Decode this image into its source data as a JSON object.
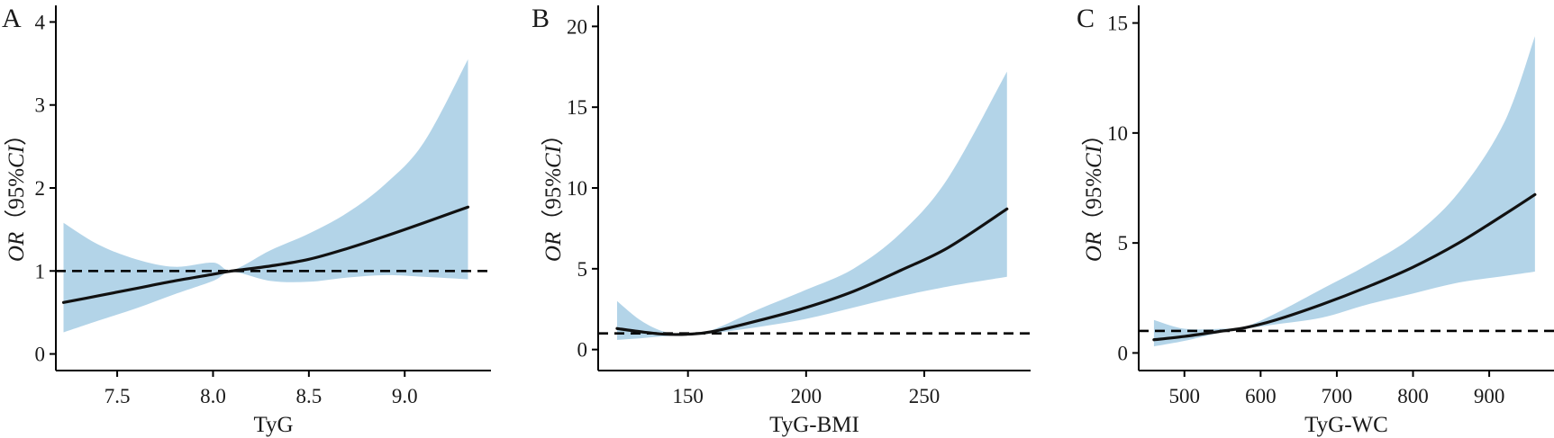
{
  "colors": {
    "ci_fill": "#b3d4e8",
    "curve": "#111111",
    "reference_line": "#000000",
    "axis": "#000000"
  },
  "chart_data": [
    {
      "panel_label": "A",
      "type": "line",
      "xlabel": "TyG",
      "ylabel_prefix": "OR",
      "ylabel_paren": "（95%",
      "ylabel_ci": "CI",
      "ylabel_close": "）",
      "xlim": [
        7.18,
        9.45
      ],
      "ylim": [
        -0.2,
        4.2
      ],
      "xticks": [
        7.5,
        8.0,
        8.5,
        9.0
      ],
      "xtick_labels": [
        "7.5",
        "8.0",
        "8.5",
        "9.0"
      ],
      "yticks": [
        0,
        1,
        2,
        3,
        4
      ],
      "ytick_labels": [
        "0",
        "1",
        "2",
        "3",
        "4"
      ],
      "reference_y": 1,
      "x": [
        7.22,
        7.4,
        7.6,
        7.8,
        8.0,
        8.1,
        8.3,
        8.5,
        8.7,
        8.9,
        9.1,
        9.33
      ],
      "series": [
        {
          "role": "estimate",
          "values": [
            0.62,
            0.7,
            0.79,
            0.88,
            0.96,
            1.0,
            1.06,
            1.14,
            1.27,
            1.42,
            1.58,
            1.77
          ]
        },
        {
          "role": "lower",
          "values": [
            0.26,
            0.4,
            0.55,
            0.72,
            0.88,
            0.99,
            0.88,
            0.87,
            0.92,
            0.95,
            0.93,
            0.9
          ]
        },
        {
          "role": "upper",
          "values": [
            1.58,
            1.32,
            1.14,
            1.05,
            1.1,
            1.01,
            1.25,
            1.45,
            1.7,
            2.05,
            2.55,
            3.55
          ]
        }
      ]
    },
    {
      "panel_label": "B",
      "type": "line",
      "xlabel": "TyG-BMI",
      "ylabel_prefix": "OR",
      "ylabel_paren": "（95%",
      "ylabel_ci": "CI",
      "ylabel_close": "）",
      "xlim": [
        112,
        295
      ],
      "ylim": [
        -1.3,
        21.3
      ],
      "xticks": [
        150,
        200,
        250
      ],
      "xtick_labels": [
        "150",
        "200",
        "250"
      ],
      "yticks": [
        0,
        5,
        10,
        15,
        20
      ],
      "ytick_labels": [
        "0",
        "5",
        "10",
        "15",
        "20"
      ],
      "reference_y": 1,
      "x": [
        120,
        130,
        140,
        150,
        160,
        180,
        200,
        220,
        240,
        260,
        285
      ],
      "series": [
        {
          "role": "estimate",
          "values": [
            1.3,
            1.1,
            0.95,
            0.95,
            1.1,
            1.8,
            2.6,
            3.6,
            4.9,
            6.3,
            8.7
          ]
        },
        {
          "role": "lower",
          "values": [
            0.6,
            0.7,
            0.82,
            0.9,
            1.0,
            1.4,
            1.9,
            2.6,
            3.3,
            3.9,
            4.5
          ]
        },
        {
          "role": "upper",
          "values": [
            3.0,
            1.8,
            1.1,
            1.0,
            1.2,
            2.5,
            3.7,
            5.0,
            7.2,
            10.6,
            17.2
          ]
        }
      ]
    },
    {
      "panel_label": "C",
      "type": "line",
      "xlabel": "TyG-WC",
      "ylabel_prefix": "OR",
      "ylabel_paren": "（95%",
      "ylabel_ci": "CI",
      "ylabel_close": "）",
      "xlim": [
        440,
        985
      ],
      "ylim": [
        -0.8,
        15.8
      ],
      "xticks": [
        500,
        600,
        700,
        800,
        900
      ],
      "xtick_labels": [
        "500",
        "600",
        "700",
        "800",
        "900"
      ],
      "yticks": [
        0,
        5,
        10,
        15
      ],
      "ytick_labels": [
        "0",
        "5",
        "10",
        "15"
      ],
      "reference_y": 1,
      "x": [
        460,
        500,
        550,
        580,
        620,
        680,
        740,
        800,
        860,
        920,
        960
      ],
      "series": [
        {
          "role": "estimate",
          "values": [
            0.6,
            0.75,
            1.0,
            1.15,
            1.5,
            2.2,
            3.0,
            3.9,
            5.0,
            6.3,
            7.2
          ]
        },
        {
          "role": "lower",
          "values": [
            0.3,
            0.55,
            0.95,
            1.1,
            1.3,
            1.6,
            2.2,
            2.7,
            3.2,
            3.5,
            3.7
          ]
        },
        {
          "role": "upper",
          "values": [
            1.5,
            1.1,
            1.1,
            1.2,
            1.8,
            2.9,
            4.0,
            5.3,
            7.3,
            10.5,
            14.4
          ]
        }
      ]
    }
  ]
}
